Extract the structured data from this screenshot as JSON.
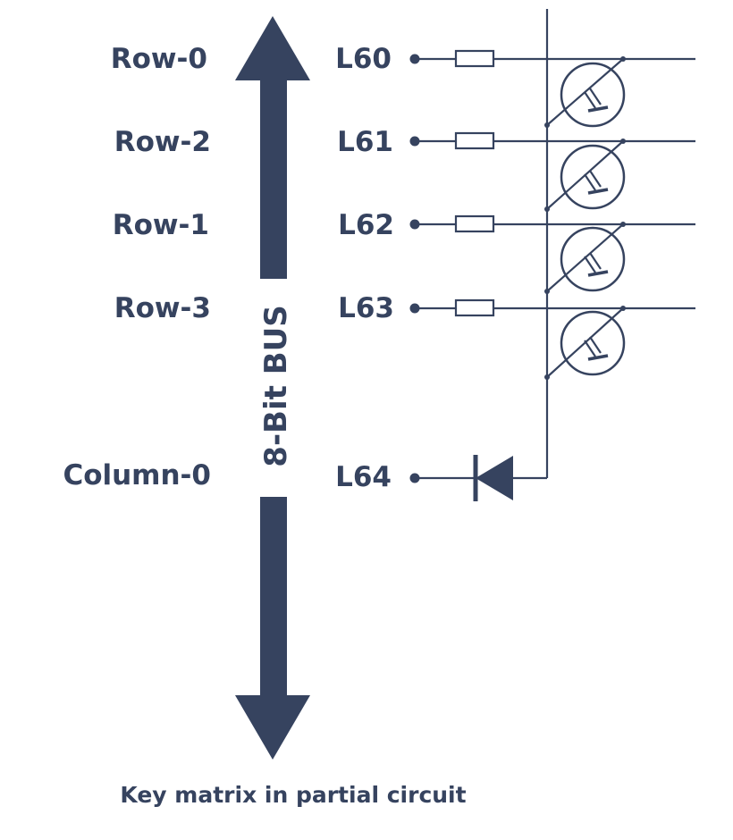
{
  "bus": {
    "label": "8-Bit BUS",
    "color": "#36435f"
  },
  "rows": [
    {
      "name": "Row-0",
      "pin": "L60"
    },
    {
      "name": "Row-2",
      "pin": "L61"
    },
    {
      "name": "Row-1",
      "pin": "L62"
    },
    {
      "name": "Row-3",
      "pin": "L63"
    }
  ],
  "column": {
    "name": "Column-0",
    "pin": "L64"
  },
  "components": {
    "resistors": 4,
    "key_switches": 4,
    "diodes": 1
  },
  "caption": "Key matrix in partial circuit"
}
